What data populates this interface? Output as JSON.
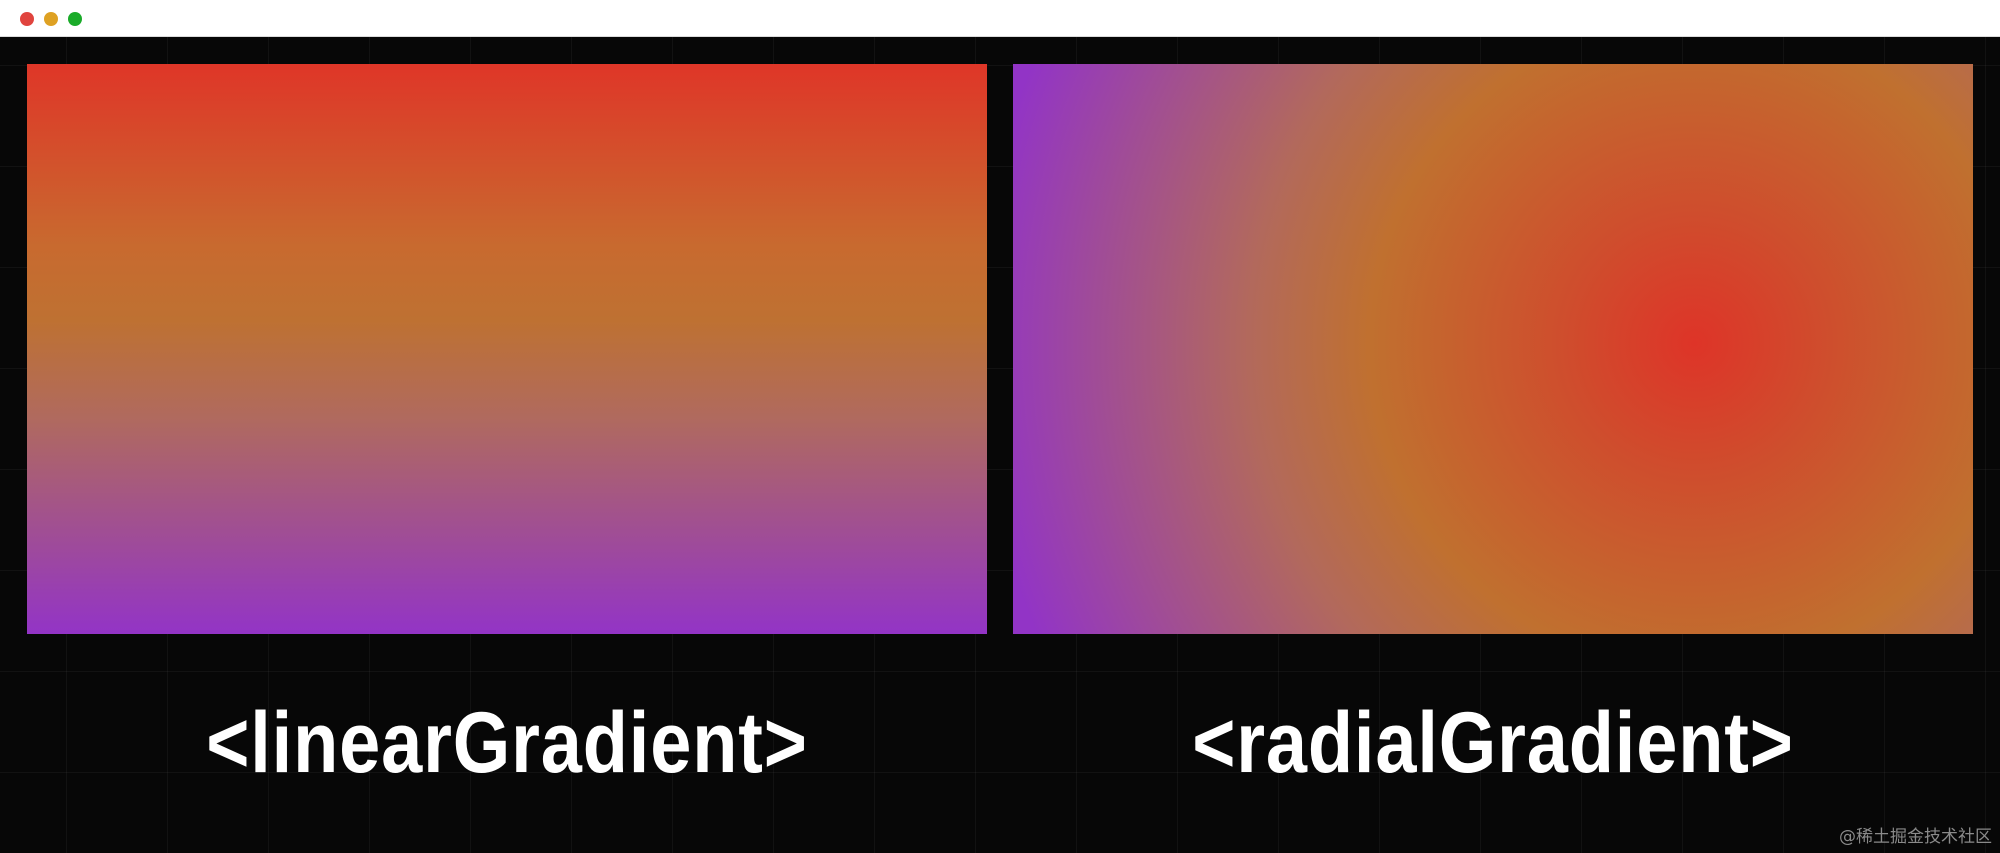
{
  "window": {
    "controls": {
      "close_color": "#e0443e",
      "minimize_color": "#dea123",
      "maximize_color": "#1aab29"
    }
  },
  "panels": [
    {
      "kind": "linear",
      "caption": "<linearGradient>",
      "colors": [
        "#df3628",
        "#be7132",
        "#9334c6"
      ]
    },
    {
      "kind": "radial",
      "caption": "<radialGradient>",
      "colors": [
        "#de3428",
        "#c0702f",
        "#9234c6"
      ]
    }
  ],
  "watermark": "@稀土掘金技术社区"
}
